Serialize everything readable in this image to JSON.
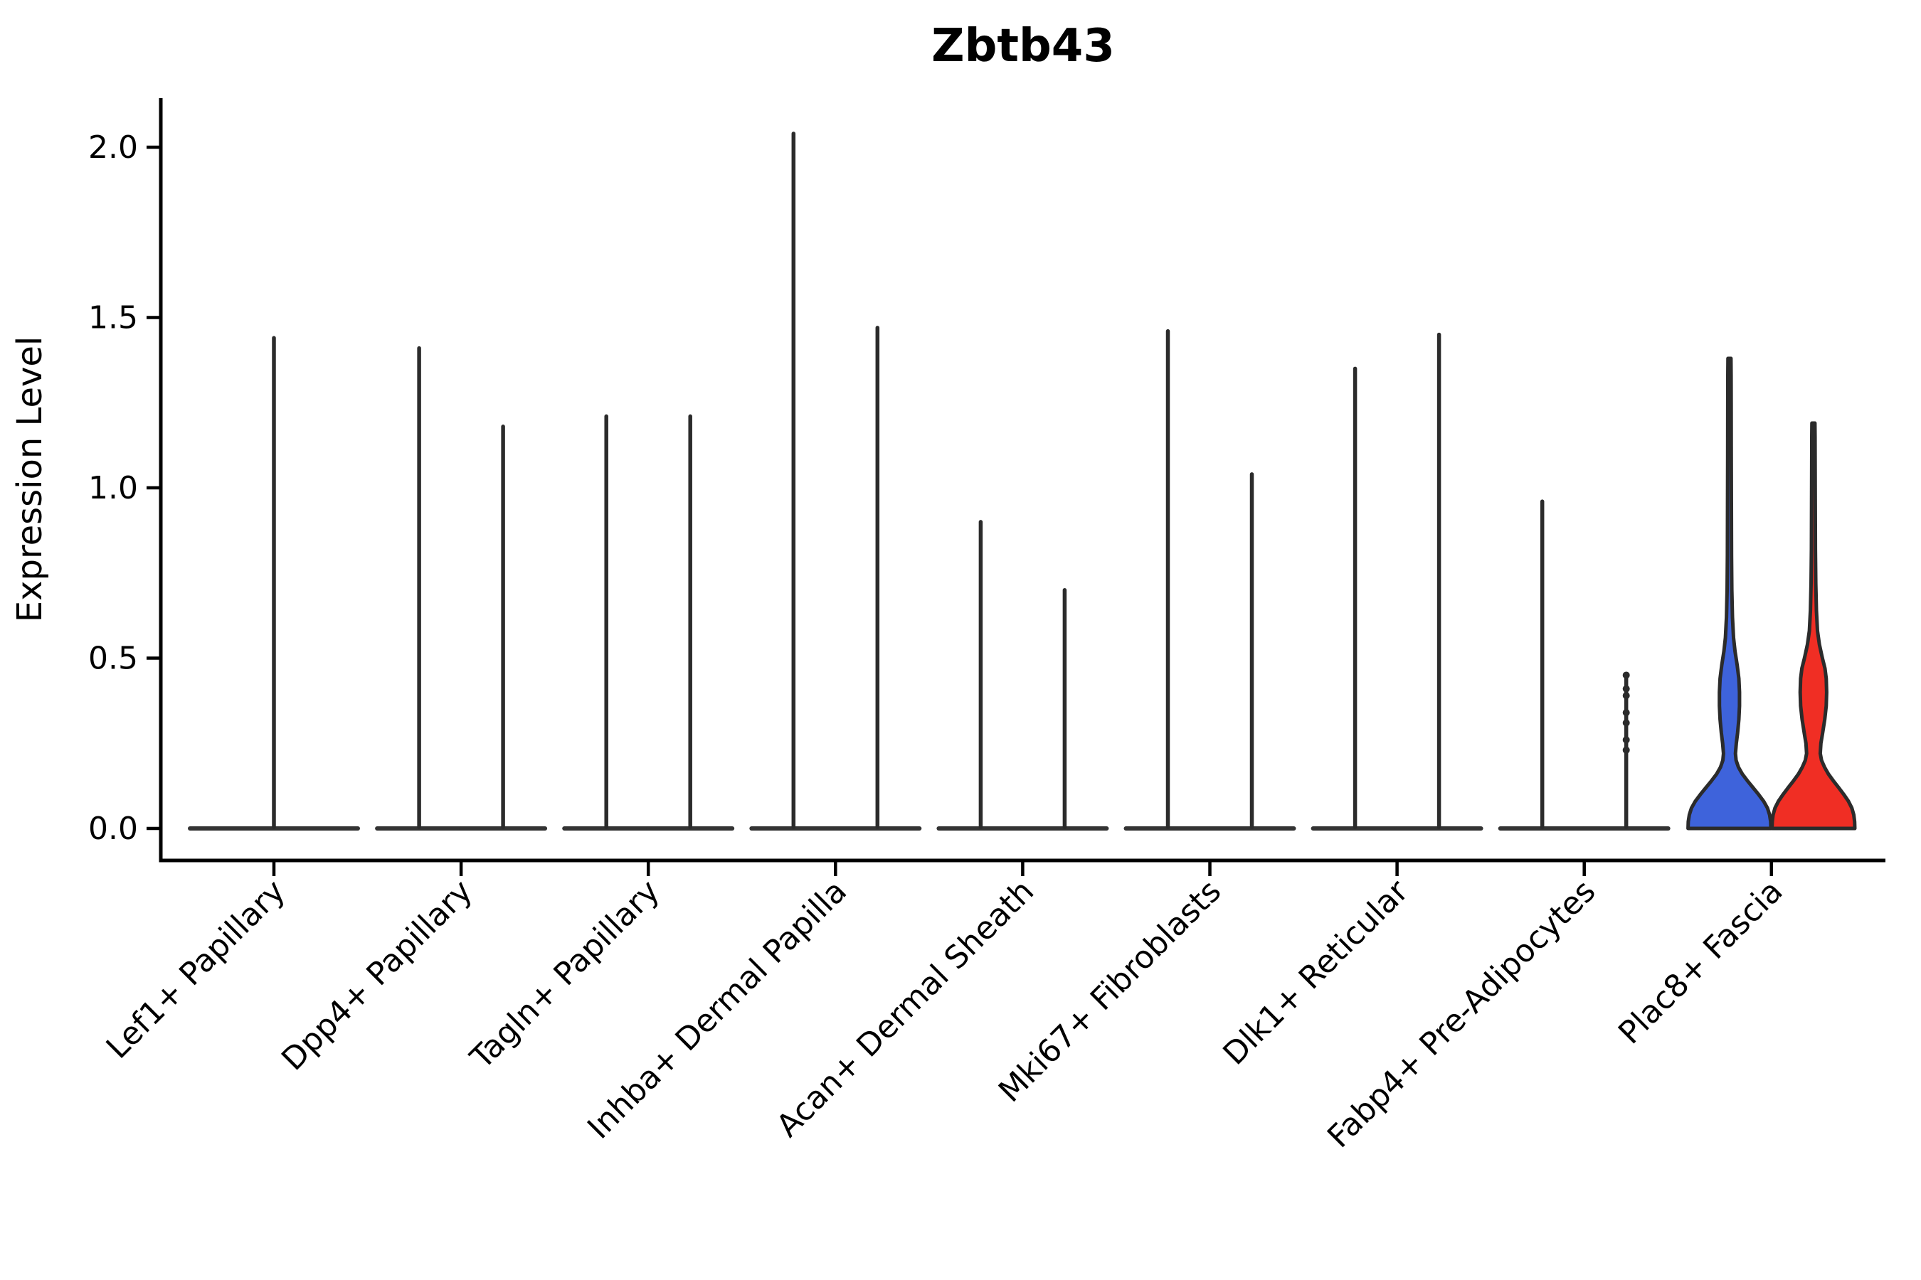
{
  "chart_data": {
    "type": "violin",
    "title": "Zbtb43",
    "ylabel": "Expression Level",
    "xlabel": "",
    "yticks": [
      "0.0",
      "0.5",
      "1.0",
      "1.5",
      "2.0"
    ],
    "ytick_values": [
      0.0,
      0.5,
      1.0,
      1.5,
      2.0
    ],
    "ylim": [
      -0.09,
      2.15
    ],
    "grid": false,
    "legend_position": "none",
    "x_tick_rotation": 45,
    "outline_color": "#2b2b2b",
    "baseline_color": "#333333",
    "axis_color": "#000000",
    "split_fill_colors": {
      "blue": "#3e63db",
      "red": "#f02e24"
    },
    "categories": [
      "Lef1+ Papillary",
      "Dpp4+ Papillary",
      "Tagln+ Papillary",
      "Inhba+ Dermal Papilla",
      "Acan+ Dermal Sheath",
      "Mki67+ Fibroblasts",
      "Dlk1+ Reticular",
      "Fabp4+ Pre-Adipocytes",
      "Plac8+ Fascia"
    ],
    "violins": [
      {
        "category": "Lef1+ Papillary",
        "position": "center",
        "shape": "spike",
        "max": 1.44
      },
      {
        "category": "Dpp4+ Papillary",
        "position": "left",
        "shape": "spike",
        "max": 1.41
      },
      {
        "category": "Dpp4+ Papillary",
        "position": "right",
        "shape": "spike",
        "max": 1.18
      },
      {
        "category": "Tagln+ Papillary",
        "position": "left",
        "shape": "spike",
        "max": 1.21
      },
      {
        "category": "Tagln+ Papillary",
        "position": "right",
        "shape": "spike",
        "max": 1.21
      },
      {
        "category": "Inhba+ Dermal Papilla",
        "position": "left",
        "shape": "spike",
        "max": 2.04
      },
      {
        "category": "Inhba+ Dermal Papilla",
        "position": "right",
        "shape": "spike",
        "max": 1.47
      },
      {
        "category": "Acan+ Dermal Sheath",
        "position": "left",
        "shape": "spike",
        "max": 0.9
      },
      {
        "category": "Acan+ Dermal Sheath",
        "position": "right",
        "shape": "spike",
        "max": 0.7
      },
      {
        "category": "Mki67+ Fibroblasts",
        "position": "left",
        "shape": "spike",
        "max": 1.46
      },
      {
        "category": "Mki67+ Fibroblasts",
        "position": "right",
        "shape": "spike",
        "max": 1.04
      },
      {
        "category": "Dlk1+ Reticular",
        "position": "left",
        "shape": "spike",
        "max": 1.35
      },
      {
        "category": "Dlk1+ Reticular",
        "position": "right",
        "shape": "spike",
        "max": 1.45
      },
      {
        "category": "Fabp4+ Pre-Adipocytes",
        "position": "left",
        "shape": "spike",
        "max": 0.96
      },
      {
        "category": "Fabp4+ Pre-Adipocytes",
        "position": "right",
        "shape": "spike",
        "max": 0.45,
        "points": [
          0.45,
          0.41,
          0.39,
          0.34,
          0.31,
          0.26,
          0.23
        ]
      },
      {
        "category": "Plac8+ Fascia",
        "position": "left",
        "shape": "violin",
        "max": 1.38,
        "fill": "#3e63db",
        "profile": [
          [
            0.0,
            0.97
          ],
          [
            0.02,
            0.965
          ],
          [
            0.04,
            0.94
          ],
          [
            0.06,
            0.89
          ],
          [
            0.08,
            0.8
          ],
          [
            0.1,
            0.68
          ],
          [
            0.12,
            0.55
          ],
          [
            0.14,
            0.42
          ],
          [
            0.16,
            0.3
          ],
          [
            0.18,
            0.21
          ],
          [
            0.2,
            0.155
          ],
          [
            0.22,
            0.14
          ],
          [
            0.25,
            0.16
          ],
          [
            0.28,
            0.19
          ],
          [
            0.32,
            0.22
          ],
          [
            0.36,
            0.235
          ],
          [
            0.4,
            0.235
          ],
          [
            0.44,
            0.22
          ],
          [
            0.48,
            0.18
          ],
          [
            0.52,
            0.13
          ],
          [
            0.56,
            0.095
          ],
          [
            0.62,
            0.07
          ],
          [
            0.7,
            0.055
          ],
          [
            0.8,
            0.048
          ],
          [
            0.95,
            0.045
          ],
          [
            1.1,
            0.042
          ],
          [
            1.25,
            0.04
          ],
          [
            1.33,
            0.038
          ],
          [
            1.38,
            0.035
          ]
        ]
      },
      {
        "category": "Plac8+ Fascia",
        "position": "right",
        "shape": "violin",
        "max": 1.19,
        "fill": "#f02e24",
        "profile": [
          [
            0.0,
            0.97
          ],
          [
            0.02,
            0.965
          ],
          [
            0.04,
            0.945
          ],
          [
            0.06,
            0.9
          ],
          [
            0.08,
            0.82
          ],
          [
            0.1,
            0.71
          ],
          [
            0.12,
            0.59
          ],
          [
            0.14,
            0.465
          ],
          [
            0.16,
            0.35
          ],
          [
            0.18,
            0.26
          ],
          [
            0.2,
            0.19
          ],
          [
            0.22,
            0.16
          ],
          [
            0.25,
            0.175
          ],
          [
            0.28,
            0.215
          ],
          [
            0.32,
            0.265
          ],
          [
            0.36,
            0.3
          ],
          [
            0.4,
            0.31
          ],
          [
            0.44,
            0.3
          ],
          [
            0.47,
            0.27
          ],
          [
            0.5,
            0.21
          ],
          [
            0.54,
            0.14
          ],
          [
            0.58,
            0.095
          ],
          [
            0.64,
            0.07
          ],
          [
            0.72,
            0.055
          ],
          [
            0.82,
            0.047
          ],
          [
            0.95,
            0.043
          ],
          [
            1.08,
            0.04
          ],
          [
            1.15,
            0.038
          ],
          [
            1.19,
            0.035
          ]
        ]
      }
    ]
  }
}
